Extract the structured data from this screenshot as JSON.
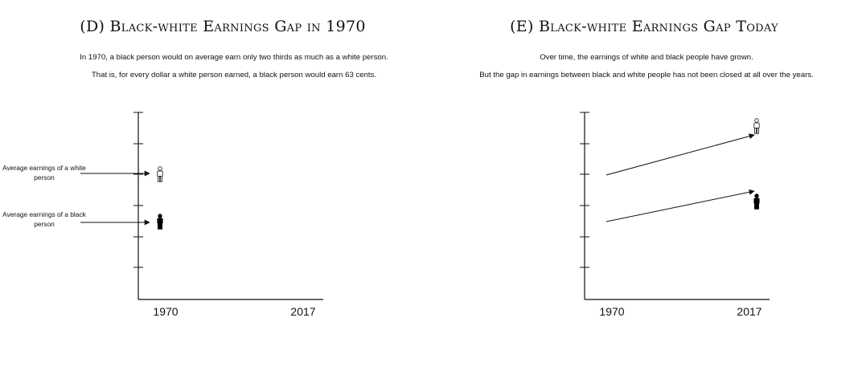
{
  "panel_d": {
    "title": "(D) Black-white Earnings Gap in 1970",
    "caption_line1": "In 1970, a black person would on average earn only two thirds as much as a white person.",
    "caption_line2": "That is, for every dollar a white person earned, a black person would earn 63 cents.",
    "label_white": "Average earnings of a white person",
    "label_black": "Average earnings of a black person",
    "x_labels": [
      "1970",
      "2017"
    ]
  },
  "panel_e": {
    "title": "(E) Black-white Earnings Gap Today",
    "caption_line1": "Over time, the earnings of white and black people have grown.",
    "caption_line2": "But the gap in earnings between black and white people has not been closed at all over the years.",
    "x_labels": [
      "1970",
      "2017"
    ]
  },
  "icons": {
    "white_person": "white-person-icon",
    "black_person": "black-person-icon"
  },
  "colors": {
    "white_person_fill": "#ffffff",
    "black_person_fill": "#000000"
  }
}
